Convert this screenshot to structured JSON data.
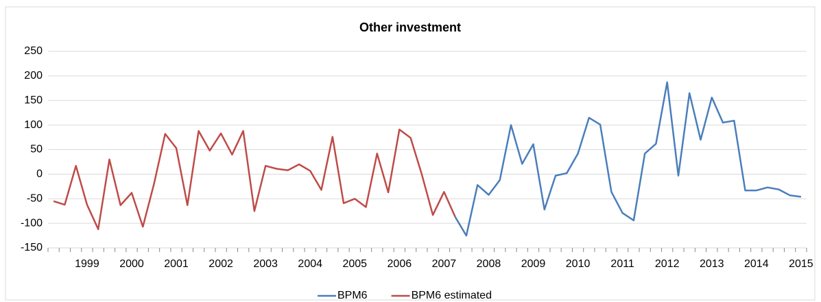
{
  "chart_data": {
    "type": "line",
    "title": "Other investment",
    "categories": [
      null,
      null,
      null,
      "1999",
      null,
      null,
      null,
      "2000",
      null,
      null,
      null,
      "2001",
      null,
      null,
      null,
      "2002",
      null,
      null,
      null,
      "2003",
      null,
      null,
      null,
      "2004",
      null,
      null,
      null,
      "2005",
      null,
      null,
      null,
      "2006",
      null,
      null,
      null,
      "2007",
      null,
      null,
      null,
      "2008",
      null,
      null,
      null,
      "2009",
      null,
      null,
      null,
      "2010",
      null,
      null,
      null,
      "2011",
      null,
      null,
      null,
      "2012",
      null,
      null,
      null,
      "2013",
      null,
      null,
      null,
      "2014",
      null,
      null,
      null,
      "2015"
    ],
    "series": [
      {
        "name": "BPM6",
        "color": "#4a7ebb",
        "values": [
          null,
          null,
          null,
          null,
          null,
          null,
          null,
          null,
          null,
          null,
          null,
          null,
          null,
          null,
          null,
          null,
          null,
          null,
          null,
          null,
          null,
          null,
          null,
          null,
          null,
          null,
          null,
          null,
          null,
          null,
          null,
          null,
          null,
          null,
          null,
          null,
          -87,
          -125,
          -22,
          -42,
          -12,
          100,
          21,
          61,
          -72,
          -3,
          2,
          42,
          115,
          101,
          -36,
          -79,
          -94,
          42,
          62,
          187,
          -3,
          165,
          70,
          156,
          105,
          109,
          -33,
          -33,
          -27,
          -31,
          -43,
          -46
        ]
      },
      {
        "name": "BPM6 estimated",
        "color": "#be4b48",
        "values": [
          -55,
          -62,
          17,
          -62,
          -112,
          30,
          -63,
          -38,
          -107,
          -20,
          82,
          53,
          -63,
          88,
          48,
          83,
          40,
          88,
          -75,
          17,
          11,
          8,
          20,
          7,
          -32,
          76,
          -59,
          -50,
          -67,
          42,
          -37,
          91,
          74,
          0,
          -83,
          -36,
          -87,
          null,
          null,
          null,
          null,
          null,
          null,
          null,
          null,
          null,
          null,
          null,
          null,
          null,
          null,
          null,
          null,
          null,
          null,
          null,
          null,
          null,
          null,
          null,
          null,
          null,
          null,
          null,
          null,
          null,
          null,
          null
        ]
      }
    ],
    "ylim": [
      -150,
      250
    ],
    "yticks": [
      -150,
      -100,
      -50,
      0,
      50,
      100,
      150,
      200,
      250
    ],
    "grid": true,
    "legend": "bottom"
  }
}
